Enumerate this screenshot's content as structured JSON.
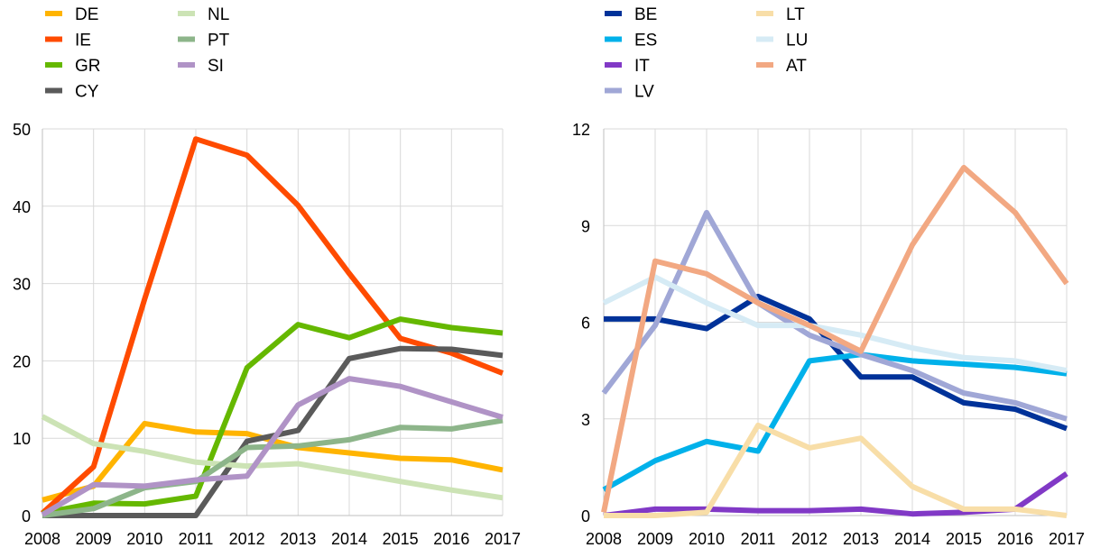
{
  "chart_data": [
    {
      "type": "line",
      "title": "",
      "xlabel": "",
      "ylabel": "",
      "x": [
        "2008",
        "2009",
        "2010",
        "2011",
        "2012",
        "2013",
        "2014",
        "2015",
        "2016",
        "2017"
      ],
      "ylim": [
        0,
        50
      ],
      "yticks": [
        0,
        10,
        20,
        30,
        40,
        50
      ],
      "grid": true,
      "legend_position": "top",
      "series": [
        {
          "name": "DE",
          "color": "#FFB400",
          "values": [
            2.0,
            3.8,
            11.9,
            10.8,
            10.6,
            8.8,
            8.1,
            7.4,
            7.2,
            5.9
          ]
        },
        {
          "name": "IE",
          "color": "#FF4B00",
          "values": [
            0.3,
            6.3,
            28.0,
            48.7,
            46.6,
            40.1,
            31.3,
            22.9,
            21.0,
            18.4
          ]
        },
        {
          "name": "GR",
          "color": "#65B800",
          "values": [
            0.3,
            1.6,
            1.5,
            2.5,
            19.1,
            24.7,
            23.0,
            25.4,
            24.3,
            23.6
          ]
        },
        {
          "name": "CY",
          "color": "#5A5A5A",
          "values": [
            0.0,
            0.0,
            0.0,
            0.0,
            9.6,
            11.0,
            20.3,
            21.6,
            21.5,
            20.7
          ]
        },
        {
          "name": "NL",
          "color": "#CCE3B5",
          "values": [
            12.8,
            9.3,
            8.3,
            6.9,
            6.4,
            6.7,
            5.6,
            4.4,
            3.3,
            2.3
          ]
        },
        {
          "name": "PT",
          "color": "#8DB58A",
          "values": [
            0.0,
            0.9,
            3.6,
            4.4,
            8.8,
            9.0,
            9.8,
            11.4,
            11.2,
            12.3
          ]
        },
        {
          "name": "SI",
          "color": "#B093C6",
          "values": [
            0.1,
            4.0,
            3.8,
            4.6,
            5.1,
            14.3,
            17.7,
            16.7,
            14.7,
            12.7
          ]
        }
      ]
    },
    {
      "type": "line",
      "title": "",
      "xlabel": "",
      "ylabel": "",
      "x": [
        "2008",
        "2009",
        "2010",
        "2011",
        "2012",
        "2013",
        "2014",
        "2015",
        "2016",
        "2017"
      ],
      "ylim": [
        0,
        12
      ],
      "yticks": [
        0,
        3,
        6,
        9,
        12
      ],
      "grid": true,
      "legend_position": "top",
      "series": [
        {
          "name": "BE",
          "color": "#003299",
          "values": [
            6.1,
            6.1,
            5.8,
            6.8,
            6.1,
            4.3,
            4.3,
            3.5,
            3.3,
            2.7
          ]
        },
        {
          "name": "ES",
          "color": "#00B1EA",
          "values": [
            0.8,
            1.7,
            2.3,
            2.0,
            4.8,
            5.0,
            4.8,
            4.7,
            4.6,
            4.4
          ]
        },
        {
          "name": "IT",
          "color": "#8139C6",
          "values": [
            0.0,
            0.2,
            0.2,
            0.15,
            0.15,
            0.2,
            0.05,
            0.1,
            0.2,
            1.3
          ]
        },
        {
          "name": "LV",
          "color": "#A0A7D6",
          "values": [
            3.8,
            5.9,
            9.4,
            6.6,
            5.6,
            5.0,
            4.5,
            3.8,
            3.5,
            3.0
          ]
        },
        {
          "name": "LT",
          "color": "#F8DEA8",
          "values": [
            0.0,
            0.0,
            0.1,
            2.8,
            2.1,
            2.4,
            0.9,
            0.2,
            0.2,
            0.0
          ]
        },
        {
          "name": "LU",
          "color": "#D6EBF5",
          "values": [
            6.6,
            7.4,
            6.6,
            5.9,
            5.9,
            5.6,
            5.2,
            4.9,
            4.8,
            4.5
          ]
        },
        {
          "name": "AT",
          "color": "#F2A882",
          "values": [
            0.1,
            7.9,
            7.5,
            6.6,
            5.9,
            5.1,
            8.4,
            10.8,
            9.4,
            7.2
          ]
        }
      ]
    }
  ]
}
